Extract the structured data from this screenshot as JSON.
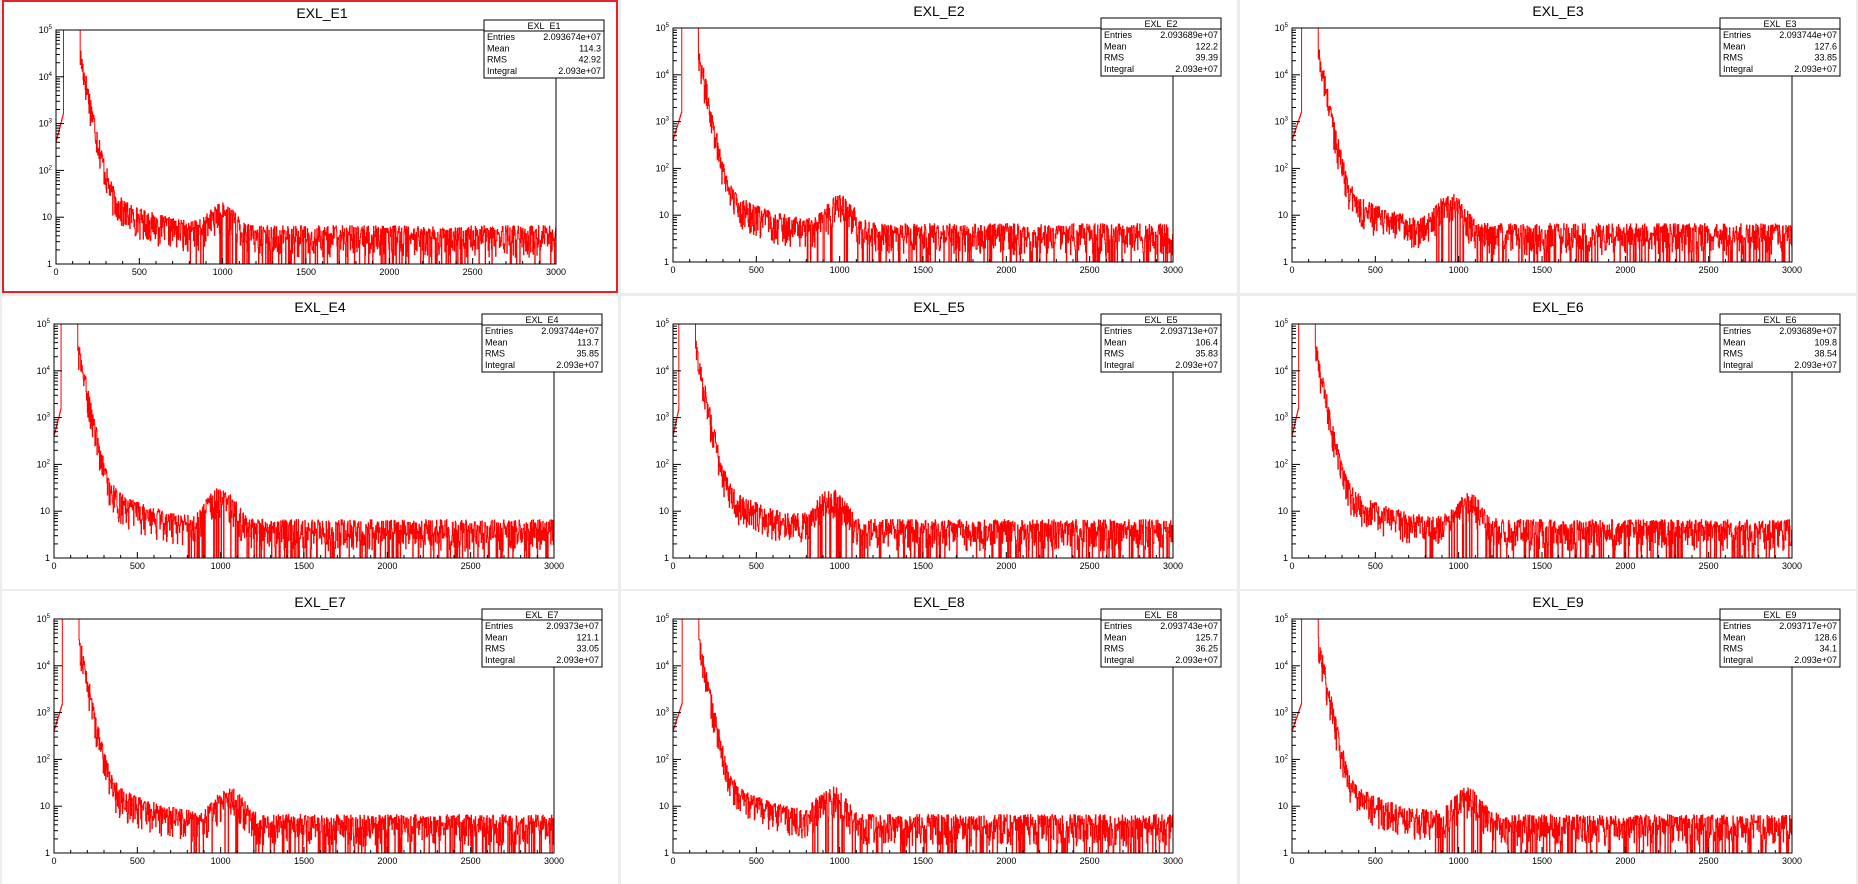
{
  "colors": {
    "background": "#ececec",
    "pad": "#ffffff",
    "histogram": "#ff0000",
    "selection": "#e0242a"
  },
  "selected_pad": 0,
  "stats_labels": {
    "entries": "Entries",
    "mean": "Mean",
    "rms": "RMS",
    "integral": "Integral"
  },
  "y_tick_labels": {
    "t1": "1",
    "t10": "10",
    "base": "10",
    "e2": "2",
    "e3": "3",
    "e4": "4",
    "e5": "5"
  },
  "chart_data": [
    {
      "type": "bar",
      "title": "EXL_E1",
      "xlim": [
        0,
        3000
      ],
      "ylim": [
        1,
        100000
      ],
      "yscale": "log",
      "xticks": [
        "0",
        "500",
        "1000",
        "1500",
        "2000",
        "2500",
        "3000"
      ],
      "peak_x": 114,
      "bump": {
        "x": 1000,
        "y": 8
      },
      "stats": {
        "name": "EXL_E1",
        "entries": "2.093674e+07",
        "mean": "114.3",
        "rms": "42.92",
        "integral": "2.093e+07"
      }
    },
    {
      "type": "bar",
      "title": "EXL_E2",
      "xlim": [
        0,
        3000
      ],
      "ylim": [
        1,
        100000
      ],
      "yscale": "log",
      "xticks": [
        "0",
        "500",
        "1000",
        "1500",
        "2000",
        "2500",
        "3000"
      ],
      "peak_x": 122,
      "bump": {
        "x": 1000,
        "y": 12
      },
      "stats": {
        "name": "EXL_E2",
        "entries": "2.093689e+07",
        "mean": "122.2",
        "rms": "39.39",
        "integral": "2.093e+07"
      }
    },
    {
      "type": "bar",
      "title": "EXL_E3",
      "xlim": [
        0,
        3000
      ],
      "ylim": [
        1,
        100000
      ],
      "yscale": "log",
      "xticks": [
        "0",
        "500",
        "1000",
        "1500",
        "2000",
        "2500",
        "3000"
      ],
      "peak_x": 127,
      "bump": {
        "x": 950,
        "y": 13
      },
      "stats": {
        "name": "EXL_E3",
        "entries": "2.093744e+07",
        "mean": "127.6",
        "rms": "33.85",
        "integral": "2.093e+07"
      }
    },
    {
      "type": "bar",
      "title": "EXL_E4",
      "xlim": [
        0,
        3000
      ],
      "ylim": [
        1,
        100000
      ],
      "yscale": "log",
      "xticks": [
        "0",
        "500",
        "1000",
        "1500",
        "2000",
        "2500",
        "3000"
      ],
      "peak_x": 113,
      "bump": {
        "x": 1000,
        "y": 16
      },
      "stats": {
        "name": "EXL_E4",
        "entries": "2.093744e+07",
        "mean": "113.7",
        "rms": "35.85",
        "integral": "2.093e+07"
      }
    },
    {
      "type": "bar",
      "title": "EXL_E5",
      "xlim": [
        0,
        3000
      ],
      "ylim": [
        1,
        100000
      ],
      "yscale": "log",
      "xticks": [
        "0",
        "500",
        "1000",
        "1500",
        "2000",
        "2500",
        "3000"
      ],
      "peak_x": 106,
      "bump": {
        "x": 950,
        "y": 14
      },
      "stats": {
        "name": "EXL_E5",
        "entries": "2.093713e+07",
        "mean": "106.4",
        "rms": "35.83",
        "integral": "2.093e+07"
      }
    },
    {
      "type": "bar",
      "title": "EXL_E6",
      "xlim": [
        0,
        3000
      ],
      "ylim": [
        1,
        100000
      ],
      "yscale": "log",
      "xticks": [
        "0",
        "500",
        "1000",
        "1500",
        "2000",
        "2500",
        "3000"
      ],
      "peak_x": 109,
      "bump": {
        "x": 1050,
        "y": 11
      },
      "stats": {
        "name": "EXL_E6",
        "entries": "2.093689e+07",
        "mean": "109.8",
        "rms": "38.54",
        "integral": "2.093e+07"
      }
    },
    {
      "type": "bar",
      "title": "EXL_E7",
      "xlim": [
        0,
        3000
      ],
      "ylim": [
        1,
        100000
      ],
      "yscale": "log",
      "xticks": [
        "0",
        "500",
        "1000",
        "1500",
        "2000",
        "2500",
        "3000"
      ],
      "peak_x": 121,
      "bump": {
        "x": 1050,
        "y": 11
      },
      "stats": {
        "name": "EXL_E7",
        "entries": "2.09373e+07",
        "mean": "121.1",
        "rms": "33.05",
        "integral": "2.093e+07"
      }
    },
    {
      "type": "bar",
      "title": "EXL_E8",
      "xlim": [
        0,
        3000
      ],
      "ylim": [
        1,
        100000
      ],
      "yscale": "log",
      "xticks": [
        "0",
        "500",
        "1000",
        "1500",
        "2000",
        "2500",
        "3000"
      ],
      "peak_x": 125,
      "bump": {
        "x": 950,
        "y": 12
      },
      "stats": {
        "name": "EXL_E8",
        "entries": "2.093743e+07",
        "mean": "125.7",
        "rms": "36.25",
        "integral": "2.093e+07"
      }
    },
    {
      "type": "bar",
      "title": "EXL_E9",
      "xlim": [
        0,
        3000
      ],
      "ylim": [
        1,
        100000
      ],
      "yscale": "log",
      "xticks": [
        "0",
        "500",
        "1000",
        "1500",
        "2000",
        "2500",
        "3000"
      ],
      "peak_x": 128,
      "bump": {
        "x": 1050,
        "y": 11
      },
      "stats": {
        "name": "EXL_E9",
        "entries": "2.093717e+07",
        "mean": "128.6",
        "rms": "34.1",
        "integral": "2.093e+07"
      }
    }
  ]
}
